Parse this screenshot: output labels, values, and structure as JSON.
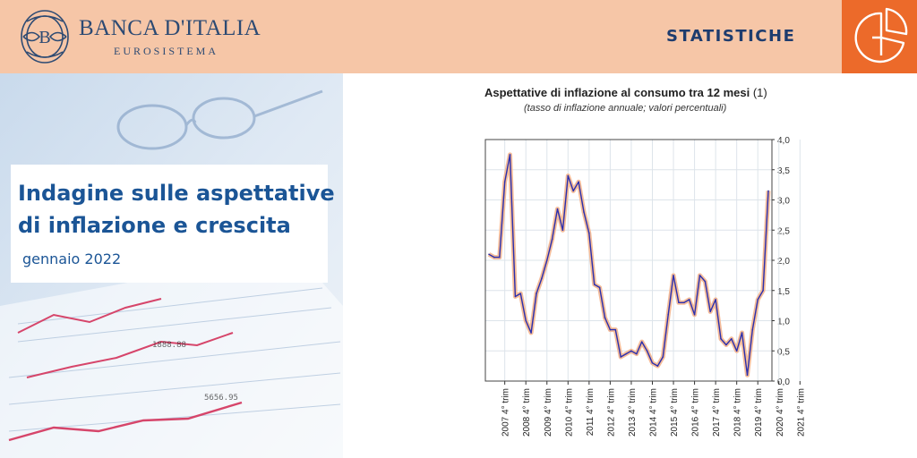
{
  "header": {
    "brand_name": "BANCA D'ITALIA",
    "brand_sub": "EUROSISTEMA",
    "section": "STATISTICHE",
    "section_icon": "pie-chart-icon",
    "accent_color": "#ec6a2a",
    "header_bg": "#f6c6a7"
  },
  "hero": {
    "title_line1": "Indagine sulle aspettative",
    "title_line2": "di inflazione e crescita",
    "date": "gennaio 2022",
    "title_color": "#1b5596"
  },
  "chart_data": {
    "type": "line",
    "title": "Aspettative di inflazione al consumo tra 12 mesi",
    "title_note": "(1)",
    "subtitle": "(tasso di inflazione annuale; valori percentuali)",
    "ylim": [
      0,
      4
    ],
    "yticks": [
      "0,0",
      "0,5",
      "1,0",
      "1,5",
      "2,0",
      "2,5",
      "3,0",
      "3,5",
      "4,0"
    ],
    "ytick_values": [
      0,
      0.5,
      1,
      1.5,
      2,
      2.5,
      3,
      3.5,
      4
    ],
    "y_axis_side": "right",
    "grid": true,
    "xtick_labels": [
      "2007 4° trim",
      "2008 4° trim",
      "2009 4° trim",
      "2010 4° trim",
      "2011 4° trim",
      "2012 4° trim",
      "2013 4° trim",
      "2014 4° trim",
      "2015 4° trim",
      "2016 4° trim",
      "2017 4° trim",
      "2018 4° trim",
      "2019 4° trim",
      "2020 4° trim",
      "2021 4° trim"
    ],
    "series": [
      {
        "color": "#2a2fae",
        "band_color": "#f3b58f",
        "values": [
          2.1,
          2.05,
          2.05,
          3.3,
          3.75,
          1.4,
          1.45,
          1.0,
          0.8,
          1.45,
          1.7,
          2.0,
          2.35,
          2.85,
          2.5,
          3.4,
          3.15,
          3.3,
          2.8,
          2.45,
          1.6,
          1.55,
          1.05,
          0.85,
          0.85,
          0.4,
          0.45,
          0.5,
          0.45,
          0.65,
          0.5,
          0.3,
          0.25,
          0.4,
          1.1,
          1.75,
          1.3,
          1.3,
          1.35,
          1.1,
          1.75,
          1.65,
          1.15,
          1.35,
          0.7,
          0.6,
          0.7,
          0.5,
          0.8,
          0.1,
          0.85,
          1.35,
          1.5,
          3.15
        ]
      }
    ]
  }
}
